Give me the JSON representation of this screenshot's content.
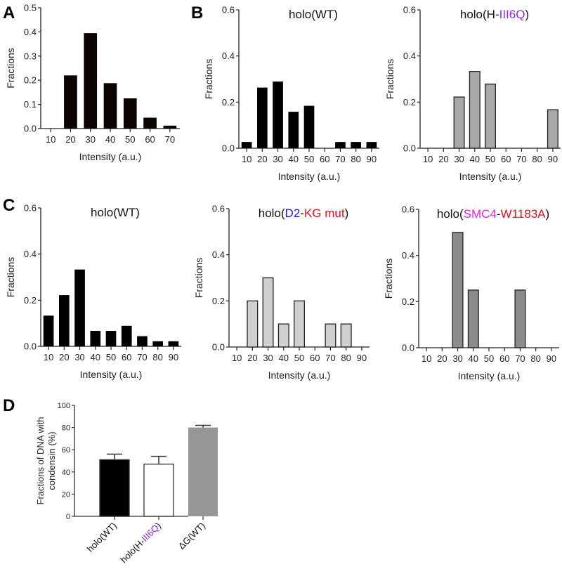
{
  "figure": {
    "panel_letters": [
      "A",
      "B",
      "C",
      "D"
    ]
  },
  "colors": {
    "black_bar": "#0a0404",
    "light_gray_bar": "#a8a8a8",
    "lighter_gray_bar": "#cfcfcf",
    "mid_gray_bar": "#8c8c8c",
    "dgcond_bar": "#969696",
    "purple": "#8a2be2",
    "blue": "#1a1aff",
    "red": "#e0101a",
    "magenta": "#e020e0"
  },
  "chart_data": [
    {
      "id": "A",
      "type": "bar",
      "title": [],
      "xlabel": "Intensity (a.u.)",
      "ylabel": "Fractions",
      "categories": [
        "10",
        "20",
        "30",
        "40",
        "50",
        "60",
        "70"
      ],
      "values": [
        0,
        0.22,
        0.395,
        0.188,
        0.125,
        0.045,
        0.012
      ],
      "ylim": [
        0,
        0.5
      ],
      "yticks": [
        "0.0",
        "0.1",
        "0.2",
        "0.3",
        "0.4",
        "0.5"
      ],
      "bar_color": "#0a0404",
      "bar_stroke": false,
      "grid": false
    },
    {
      "id": "B1",
      "type": "bar",
      "title": [
        {
          "text": "holo(WT)",
          "color": "#111111"
        }
      ],
      "xlabel": "Intensity (a.u.)",
      "ylabel": "Fractions",
      "categories": [
        "10",
        "20",
        "30",
        "40",
        "50",
        "60",
        "70",
        "80",
        "90"
      ],
      "values": [
        0.027,
        0.263,
        0.289,
        0.158,
        0.184,
        0,
        0.027,
        0.027,
        0.027
      ],
      "ylim": [
        0,
        0.6
      ],
      "yticks": [
        "0.0",
        "0.2",
        "0.4",
        "0.6"
      ],
      "bar_color": "#000000",
      "bar_stroke": false,
      "grid": false
    },
    {
      "id": "B2",
      "type": "bar",
      "title": [
        {
          "text": "holo(H-",
          "color": "#111111"
        },
        {
          "text": "III6Q",
          "color": "#8a2be2"
        },
        {
          "text": ")",
          "color": "#111111"
        }
      ],
      "xlabel": "Intensity (a.u.)",
      "ylabel": "Fractions",
      "categories": [
        "10",
        "20",
        "30",
        "40",
        "50",
        "60",
        "70",
        "80",
        "90"
      ],
      "values": [
        0,
        0,
        0.222,
        0.333,
        0.278,
        0,
        0,
        0,
        0.167
      ],
      "ylim": [
        0,
        0.6
      ],
      "yticks": [
        "0.0",
        "0.2",
        "0.4",
        "0.6"
      ],
      "bar_color": "#a8a8a8",
      "bar_stroke": true,
      "grid": false
    },
    {
      "id": "C1",
      "type": "bar",
      "title": [
        {
          "text": "holo(WT)",
          "color": "#111111"
        }
      ],
      "xlabel": "Intensity (a.u.)",
      "ylabel": "Fractions",
      "categories": [
        "10",
        "20",
        "30",
        "40",
        "50",
        "60",
        "70",
        "80",
        "90"
      ],
      "values": [
        0.133,
        0.222,
        0.333,
        0.067,
        0.067,
        0.089,
        0.044,
        0.022,
        0.022
      ],
      "ylim": [
        0,
        0.6
      ],
      "yticks": [
        "0.0",
        "0.2",
        "0.4",
        "0.6"
      ],
      "bar_color": "#000000",
      "bar_stroke": false,
      "grid": false
    },
    {
      "id": "C2",
      "type": "bar",
      "title": [
        {
          "text": "holo(",
          "color": "#111111"
        },
        {
          "text": "D2",
          "color": "#1a1aff"
        },
        {
          "text": "-",
          "color": "#111111"
        },
        {
          "text": "KG mut",
          "color": "#e0101a"
        },
        {
          "text": ")",
          "color": "#111111"
        }
      ],
      "xlabel": "Intensity (a.u.)",
      "ylabel": "Fractions",
      "categories": [
        "10",
        "20",
        "30",
        "40",
        "50",
        "60",
        "70",
        "80",
        "90"
      ],
      "values": [
        0,
        0.2,
        0.3,
        0.1,
        0.2,
        0,
        0.1,
        0.1,
        0
      ],
      "ylim": [
        0,
        0.6
      ],
      "yticks": [
        "0.0",
        "0.2",
        "0.4",
        "0.6"
      ],
      "bar_color": "#cfcfcf",
      "bar_stroke": true,
      "grid": false
    },
    {
      "id": "C3",
      "type": "bar",
      "title": [
        {
          "text": "holo(",
          "color": "#111111"
        },
        {
          "text": "SMC4",
          "color": "#e020e0"
        },
        {
          "text": "-",
          "color": "#111111"
        },
        {
          "text": "W1183A",
          "color": "#e0101a"
        },
        {
          "text": ")",
          "color": "#111111"
        }
      ],
      "xlabel": "Intensity (a.u.)",
      "ylabel": "Fractions",
      "categories": [
        "10",
        "20",
        "30",
        "40",
        "50",
        "60",
        "70",
        "80",
        "90"
      ],
      "values": [
        0,
        0,
        0.5,
        0.25,
        0,
        0,
        0.25,
        0,
        0
      ],
      "ylim": [
        0,
        0.6
      ],
      "yticks": [
        "0.0",
        "0.2",
        "0.4",
        "0.6"
      ],
      "bar_color": "#8c8c8c",
      "bar_stroke": true,
      "grid": false
    },
    {
      "id": "D",
      "type": "bar",
      "title": [],
      "xlabel": "",
      "ylabel": [
        "Fractions of DNA with",
        "condensin (%)"
      ],
      "categories": [
        [
          {
            "text": "holo(WT)",
            "color": "#111111"
          }
        ],
        [
          {
            "text": "holo(H-",
            "color": "#111111"
          },
          {
            "text": "III6Q",
            "color": "#8a2be2"
          },
          {
            "text": ")",
            "color": "#111111"
          }
        ],
        [
          {
            "text": "ΔG(WT)",
            "color": "#111111"
          }
        ]
      ],
      "values": [
        51,
        47,
        80
      ],
      "errors": [
        5,
        7,
        2
      ],
      "bar_colors": [
        "#000000",
        "#ffffff",
        "#969696"
      ],
      "ylim": [
        0,
        100
      ],
      "yticks": [
        "0",
        "20",
        "40",
        "60",
        "80",
        "100"
      ],
      "grid": false
    }
  ]
}
